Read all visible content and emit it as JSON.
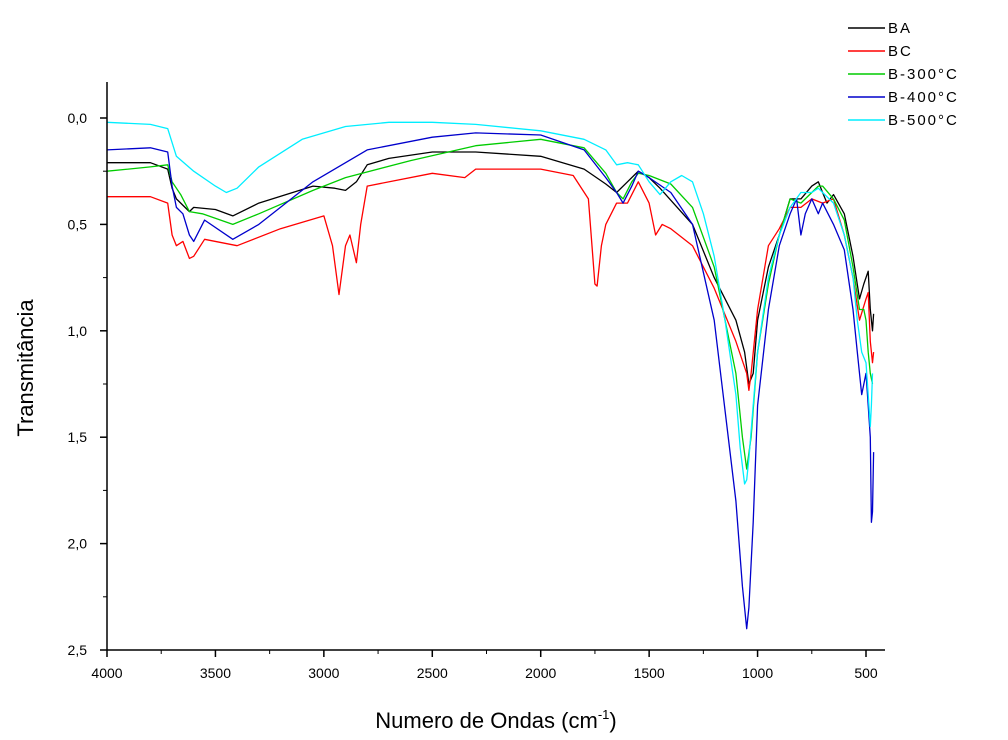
{
  "chart_data": {
    "type": "line",
    "title": "",
    "xlabel": "Numero de Ondas (cm",
    "xlabel_sup": "-1",
    "xlabel_suffix": ")",
    "ylabel": "Transmitância",
    "xlim": [
      4000,
      450
    ],
    "ylim": [
      -0.12,
      2.5
    ],
    "y_inverted": true,
    "grid": false,
    "legend_position": "top-right",
    "xticks": [
      4000,
      3500,
      3000,
      2500,
      2000,
      1500,
      1000,
      500
    ],
    "xtick_labels": [
      "4000",
      "3500",
      "3000",
      "2500",
      "2000",
      "1500",
      "1000",
      "500"
    ],
    "yticks": [
      0.0,
      0.5,
      1.0,
      1.5,
      2.0,
      2.5
    ],
    "ytick_labels": [
      "0,0",
      "0,5",
      "1,0",
      "1,5",
      "2,0",
      "2,5"
    ],
    "series": [
      {
        "name": "BA",
        "color": "#000000",
        "x": [
          4000,
          3800,
          3720,
          3700,
          3680,
          3620,
          3600,
          3500,
          3420,
          3300,
          3050,
          2950,
          2900,
          2850,
          2800,
          2700,
          2500,
          2300,
          2000,
          1800,
          1700,
          1650,
          1600,
          1550,
          1500,
          1450,
          1300,
          1200,
          1100,
          1060,
          1040,
          1020,
          1000,
          950,
          900,
          850,
          800,
          750,
          720,
          700,
          680,
          650,
          600,
          560,
          530,
          510,
          490,
          480,
          470,
          465
        ],
        "y": [
          0.21,
          0.21,
          0.24,
          0.33,
          0.38,
          0.44,
          0.42,
          0.43,
          0.46,
          0.4,
          0.32,
          0.33,
          0.34,
          0.3,
          0.22,
          0.19,
          0.16,
          0.16,
          0.18,
          0.24,
          0.31,
          0.35,
          0.3,
          0.25,
          0.28,
          0.33,
          0.5,
          0.75,
          0.95,
          1.1,
          1.25,
          1.2,
          0.95,
          0.7,
          0.55,
          0.38,
          0.38,
          0.32,
          0.3,
          0.35,
          0.4,
          0.36,
          0.45,
          0.65,
          0.85,
          0.78,
          0.72,
          0.9,
          1.0,
          0.92
        ]
      },
      {
        "name": "BC",
        "color": "#ff0000",
        "x": [
          4000,
          3800,
          3720,
          3700,
          3680,
          3650,
          3620,
          3600,
          3550,
          3400,
          3200,
          3000,
          2960,
          2930,
          2900,
          2880,
          2850,
          2830,
          2800,
          2500,
          2350,
          2300,
          2000,
          1850,
          1780,
          1750,
          1740,
          1720,
          1700,
          1650,
          1600,
          1550,
          1500,
          1470,
          1440,
          1400,
          1300,
          1200,
          1100,
          1050,
          1040,
          1030,
          1000,
          950,
          900,
          850,
          800,
          750,
          700,
          650,
          600,
          560,
          530,
          500,
          490,
          480,
          470,
          465
        ],
        "y": [
          0.37,
          0.37,
          0.4,
          0.55,
          0.6,
          0.58,
          0.66,
          0.65,
          0.57,
          0.6,
          0.52,
          0.46,
          0.6,
          0.83,
          0.6,
          0.55,
          0.68,
          0.5,
          0.32,
          0.26,
          0.28,
          0.24,
          0.24,
          0.27,
          0.38,
          0.78,
          0.79,
          0.6,
          0.5,
          0.4,
          0.4,
          0.3,
          0.4,
          0.55,
          0.5,
          0.52,
          0.6,
          0.8,
          1.05,
          1.2,
          1.28,
          1.2,
          0.9,
          0.6,
          0.52,
          0.42,
          0.42,
          0.38,
          0.4,
          0.38,
          0.55,
          0.75,
          0.95,
          0.85,
          0.82,
          1.05,
          1.15,
          1.1
        ]
      },
      {
        "name": "B-300°C",
        "color": "#00cc00",
        "x": [
          4000,
          3800,
          3720,
          3700,
          3660,
          3620,
          3560,
          3420,
          3300,
          3050,
          2900,
          2600,
          2300,
          2000,
          1800,
          1700,
          1650,
          1620,
          1580,
          1550,
          1500,
          1400,
          1300,
          1200,
          1100,
          1070,
          1050,
          1030,
          1000,
          950,
          900,
          850,
          800,
          750,
          720,
          700,
          650,
          600,
          560,
          530,
          510,
          500,
          490,
          480,
          470
        ],
        "y": [
          0.25,
          0.23,
          0.22,
          0.3,
          0.36,
          0.44,
          0.45,
          0.5,
          0.45,
          0.34,
          0.28,
          0.2,
          0.13,
          0.1,
          0.14,
          0.26,
          0.35,
          0.38,
          0.3,
          0.26,
          0.27,
          0.31,
          0.42,
          0.7,
          1.2,
          1.5,
          1.65,
          1.5,
          1.1,
          0.78,
          0.55,
          0.38,
          0.4,
          0.35,
          0.32,
          0.32,
          0.38,
          0.48,
          0.7,
          0.9,
          0.9,
          0.95,
          1.1,
          1.2,
          1.25
        ]
      },
      {
        "name": "B-400°C",
        "color": "#0000cc",
        "x": [
          4000,
          3800,
          3720,
          3700,
          3680,
          3650,
          3620,
          3600,
          3550,
          3420,
          3300,
          3050,
          2800,
          2500,
          2300,
          2000,
          1800,
          1700,
          1650,
          1620,
          1580,
          1550,
          1500,
          1400,
          1300,
          1200,
          1100,
          1070,
          1050,
          1040,
          1020,
          1000,
          950,
          900,
          850,
          820,
          800,
          780,
          750,
          720,
          700,
          650,
          600,
          560,
          540,
          520,
          500,
          490,
          480,
          475,
          470,
          465
        ],
        "y": [
          0.15,
          0.14,
          0.16,
          0.32,
          0.42,
          0.45,
          0.55,
          0.58,
          0.48,
          0.57,
          0.5,
          0.3,
          0.15,
          0.09,
          0.07,
          0.08,
          0.15,
          0.28,
          0.35,
          0.4,
          0.32,
          0.25,
          0.28,
          0.35,
          0.5,
          0.95,
          1.8,
          2.2,
          2.4,
          2.3,
          1.9,
          1.35,
          0.9,
          0.6,
          0.45,
          0.38,
          0.55,
          0.45,
          0.38,
          0.45,
          0.4,
          0.5,
          0.62,
          0.9,
          1.1,
          1.3,
          1.2,
          1.35,
          1.5,
          1.9,
          1.85,
          1.57
        ]
      },
      {
        "name": "B-500°C",
        "color": "#00eeff",
        "x": [
          4000,
          3800,
          3720,
          3680,
          3600,
          3500,
          3450,
          3400,
          3300,
          3100,
          2900,
          2700,
          2500,
          2300,
          2000,
          1800,
          1700,
          1650,
          1600,
          1550,
          1500,
          1450,
          1400,
          1350,
          1300,
          1250,
          1200,
          1150,
          1100,
          1080,
          1060,
          1050,
          1040,
          1020,
          1000,
          950,
          900,
          850,
          800,
          750,
          720,
          700,
          650,
          600,
          560,
          540,
          520,
          500,
          490,
          480,
          475,
          470
        ],
        "y": [
          0.02,
          0.03,
          0.05,
          0.18,
          0.25,
          0.32,
          0.35,
          0.33,
          0.23,
          0.1,
          0.04,
          0.02,
          0.02,
          0.03,
          0.06,
          0.1,
          0.15,
          0.22,
          0.21,
          0.22,
          0.3,
          0.36,
          0.3,
          0.27,
          0.3,
          0.45,
          0.65,
          0.95,
          1.3,
          1.55,
          1.72,
          1.7,
          1.6,
          1.35,
          1.1,
          0.75,
          0.55,
          0.42,
          0.35,
          0.35,
          0.33,
          0.35,
          0.4,
          0.55,
          0.75,
          0.95,
          1.1,
          1.15,
          1.3,
          1.45,
          1.35,
          1.2
        ]
      }
    ]
  }
}
